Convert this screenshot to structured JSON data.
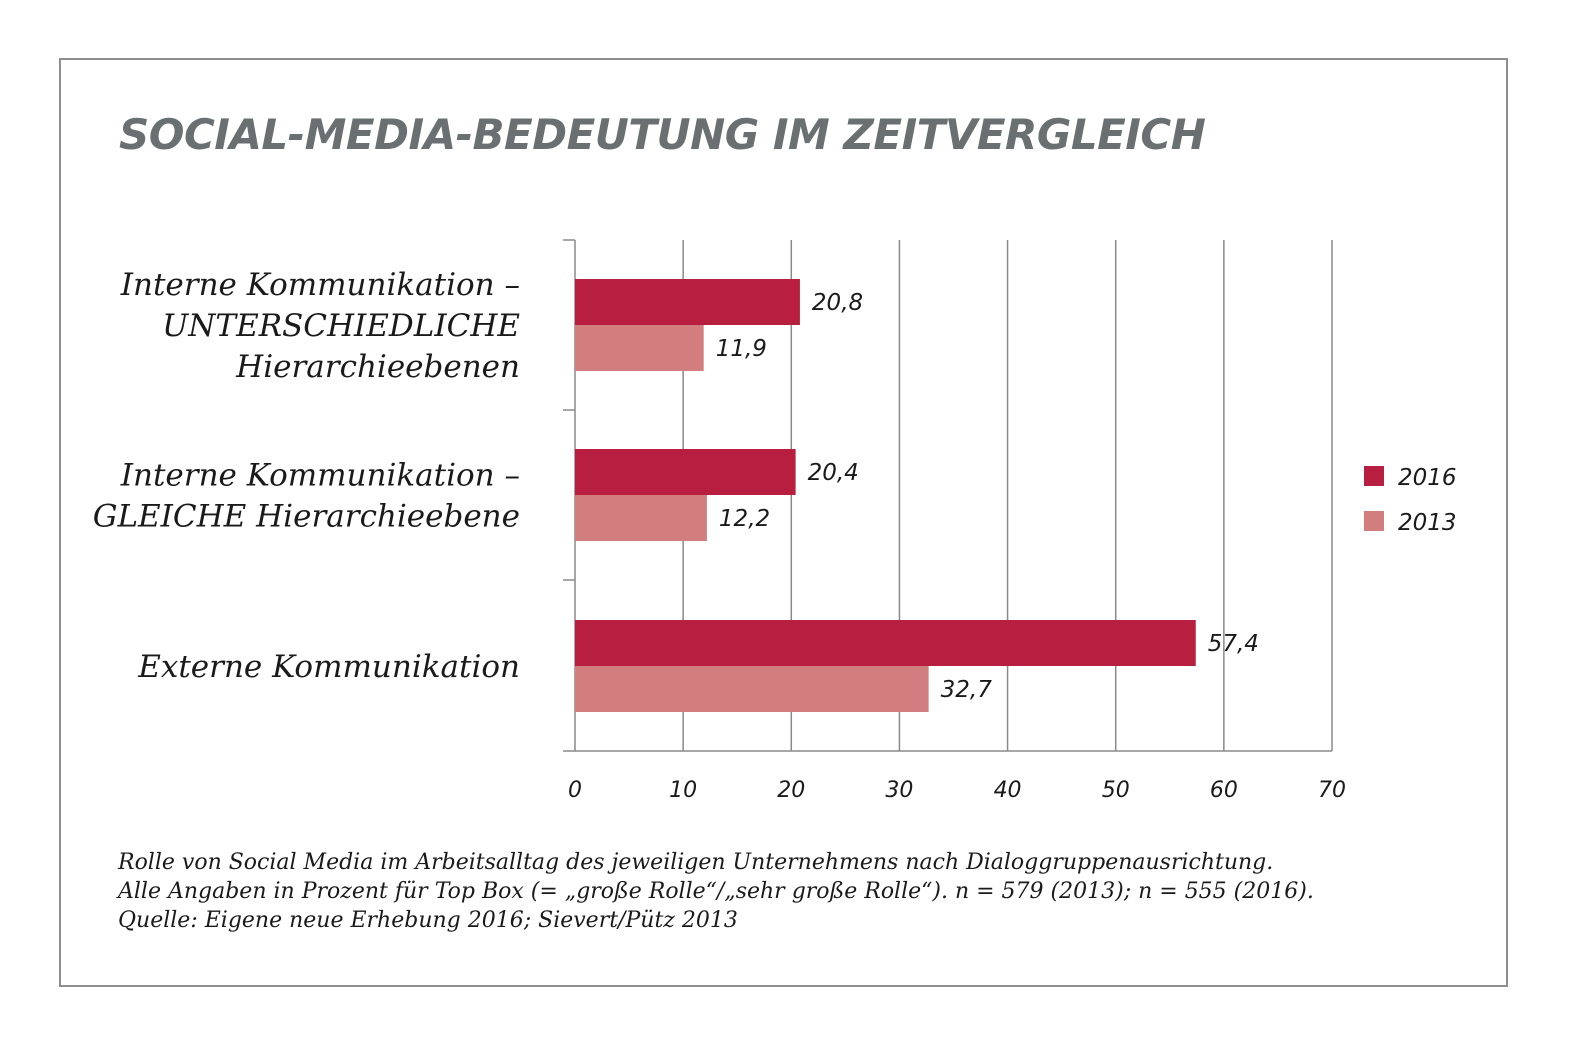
{
  "colors": {
    "series_2016": "#b81e40",
    "series_2013": "#d27d7e",
    "frame": "#8e8e8e",
    "title": "#6a7071",
    "grid": "#8a8a8a"
  },
  "chart_data": {
    "type": "bar",
    "orientation": "horizontal",
    "title": "SOCIAL-MEDIA-BEDEUTUNG IM ZEITVERGLEICH",
    "categories": [
      [
        "Interne Kommunikation –",
        "UNTERSCHIEDLICHE",
        "Hierarchieebenen"
      ],
      [
        "Interne Kommunikation –",
        "GLEICHE Hierarchieebene"
      ],
      [
        "Externe Kommunikation"
      ]
    ],
    "series": [
      {
        "name": "2016",
        "values": [
          20.8,
          20.4,
          57.4
        ],
        "labels": [
          "20,8",
          "20,4",
          "57,4"
        ]
      },
      {
        "name": "2013",
        "values": [
          11.9,
          12.2,
          32.7
        ],
        "labels": [
          "11,9",
          "12,2",
          "32,7"
        ]
      }
    ],
    "xlim": [
      0,
      70
    ],
    "xticks": [
      0,
      10,
      20,
      30,
      40,
      50,
      60,
      70
    ],
    "grid": true,
    "legend": "right",
    "xlabel": "",
    "ylabel": ""
  },
  "caption": [
    "Rolle von Social Media im Arbeitsalltag des jeweiligen Unternehmens nach Dialoggruppenausrichtung.",
    "Alle Angaben in Prozent für Top Box (= „große Rolle“/„sehr große Rolle“). n = 579 (2013); n = 555 (2016).",
    "Quelle: Eigene neue Erhebung 2016; Sievert/Pütz 2013"
  ]
}
